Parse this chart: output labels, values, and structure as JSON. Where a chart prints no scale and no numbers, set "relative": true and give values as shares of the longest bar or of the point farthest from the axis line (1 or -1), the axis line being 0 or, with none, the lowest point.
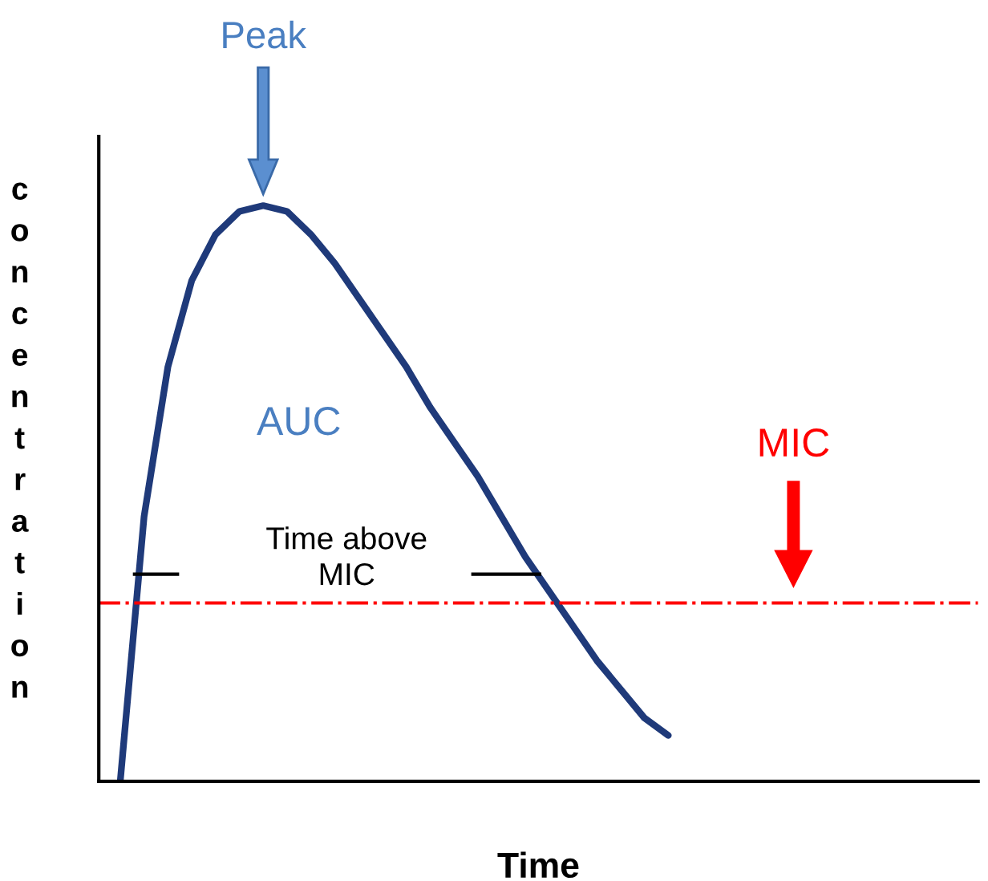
{
  "chart_data": {
    "type": "line",
    "relative": true,
    "xlabel": "Time",
    "ylabel": "concentration",
    "categories": [
      null,
      null,
      null,
      null,
      null,
      null,
      null,
      null,
      null,
      null,
      null,
      null,
      null,
      null,
      null,
      null,
      null,
      null,
      null,
      null,
      null,
      null,
      null,
      null,
      null,
      null,
      null,
      null,
      null,
      null,
      null,
      null,
      null,
      null,
      null,
      null,
      null
    ],
    "series": [
      {
        "color": "#1f3a7a",
        "values": [
          0,
          0.46,
          0.72,
          0.87,
          0.95,
          0.99,
          1,
          0.99,
          0.95,
          0.9,
          0.84,
          0.78,
          0.72,
          0.65,
          0.59,
          0.53,
          0.46,
          0.39,
          0.33,
          0.27,
          0.21,
          0.16,
          0.11,
          0.08,
          null,
          null,
          null,
          null,
          null,
          null,
          null,
          null,
          null,
          null,
          null,
          null,
          null
        ]
      }
    ],
    "ref_lines": [
      {
        "axis": "y",
        "value": 0.31,
        "label": "MIC",
        "color": "#ff0000",
        "line_style": "dashdot"
      }
    ],
    "annotations": [
      "Peak",
      "AUC",
      "Time above\nMIC"
    ],
    "grid": false
  }
}
